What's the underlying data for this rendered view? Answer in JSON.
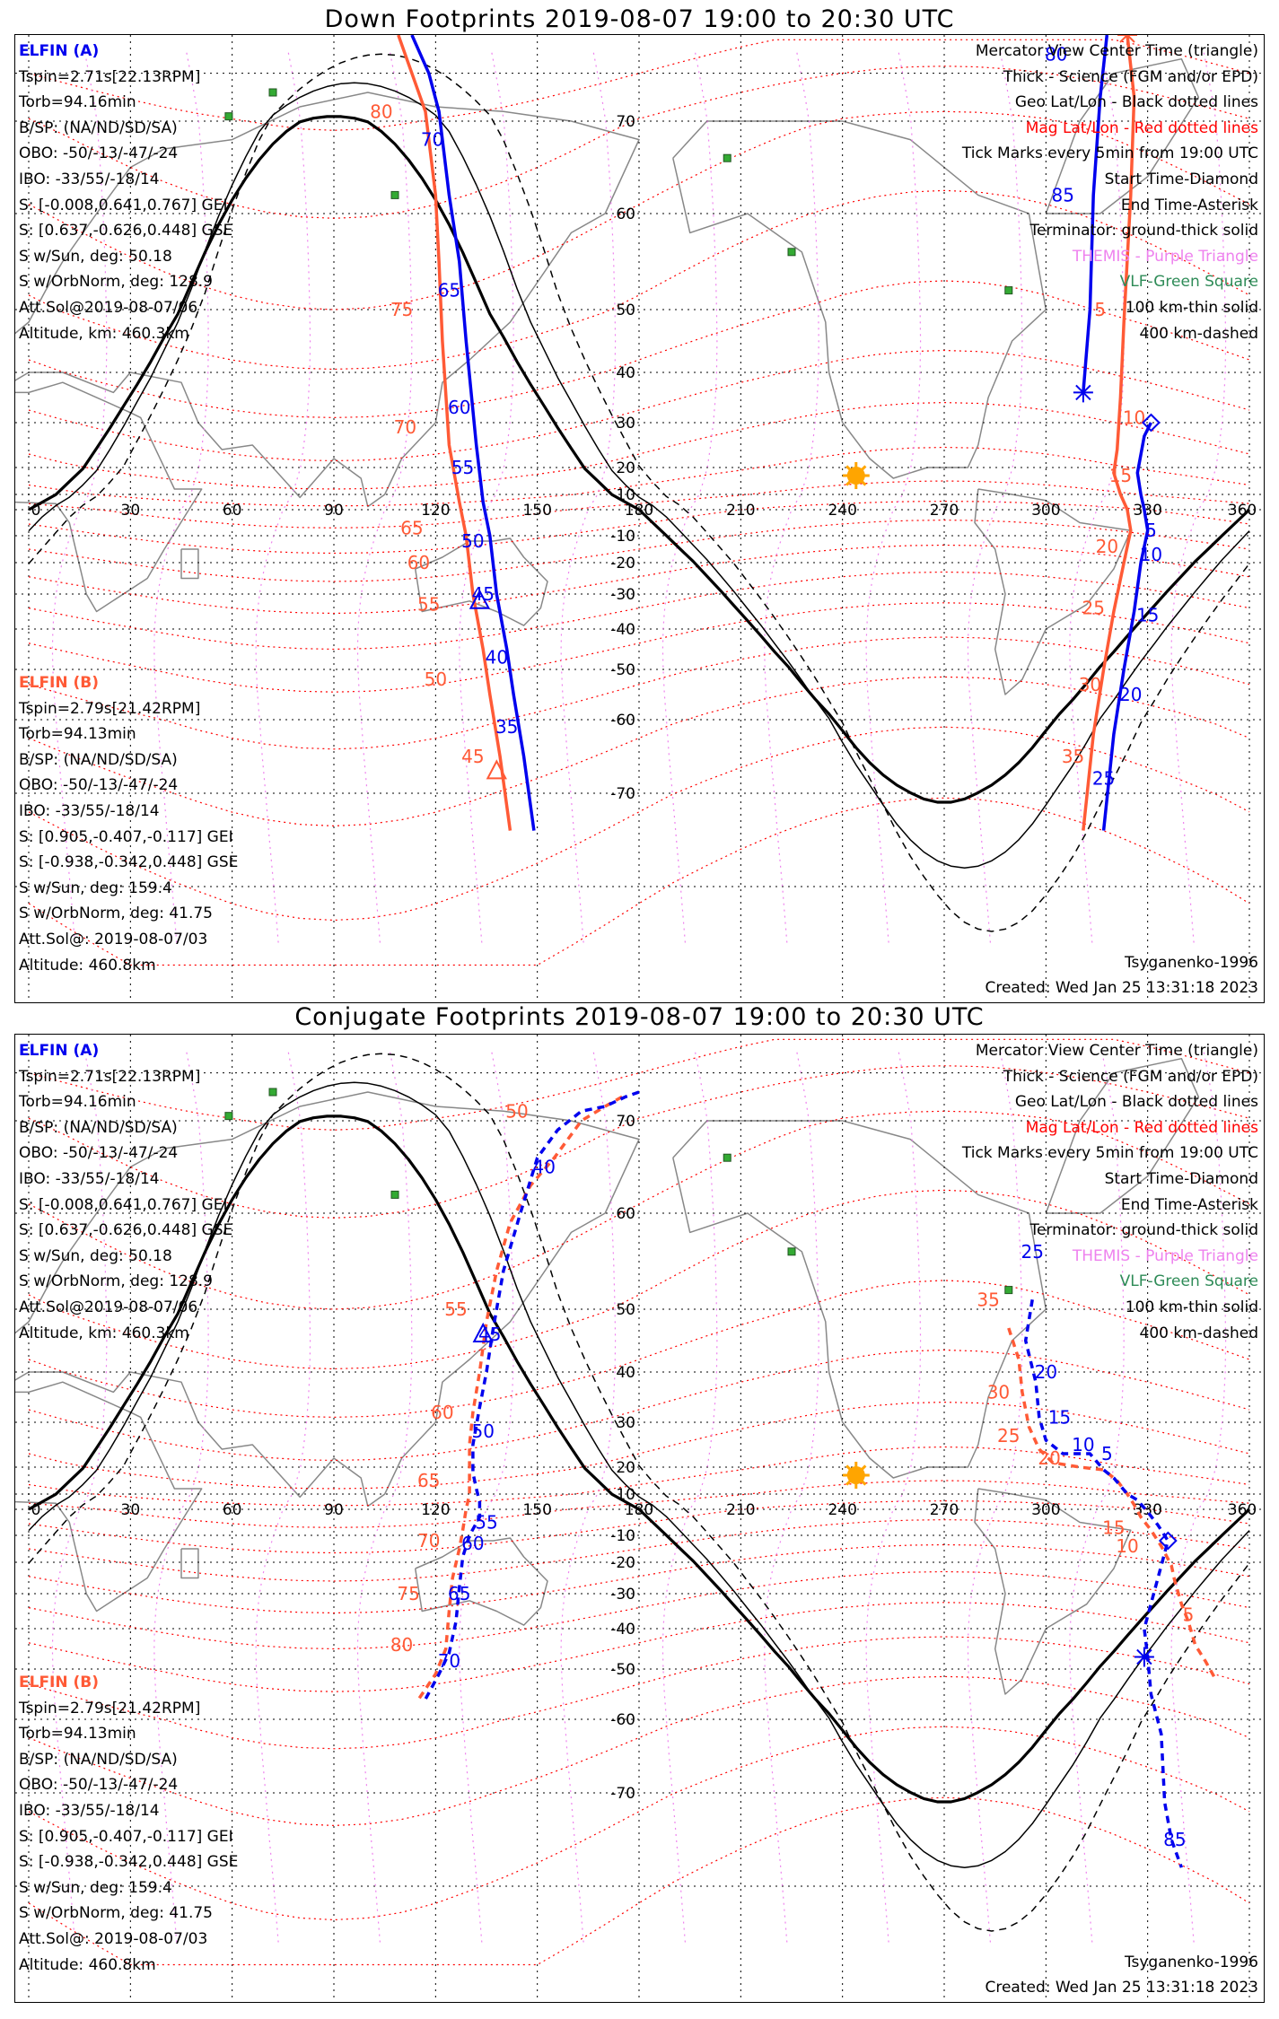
{
  "titles": {
    "down": "Down Footprints 2019-08-07 19:00 to 20:30 UTC",
    "conj": "Conjugate Footprints 2019-08-07 19:00 to 20:30 UTC"
  },
  "colors": {
    "elfin_a": "#0000ee",
    "elfin_b": "#ff5a36",
    "mag_grid": "#ff0000",
    "geo_grid": "#000000",
    "themis": "#ee82ee",
    "vlf": "#2e8b57",
    "sun": "#ffa500"
  },
  "info_a": {
    "head": "ELFIN (A)",
    "lines": [
      "Tspin=2.71s[22.13RPM]",
      "Torb=94.16min",
      "B/SP: (NA/ND/SD/SA)",
      "OBO: -50/-13/-47/-24",
      "IBO: -33/55/-18/14",
      "S: [-0.008,0.641,0.767] GEI",
      "S: [0.637,-0.626,0.448] GSE",
      "S w/Sun, deg: 50.18",
      "S w/OrbNorm, deg: 128.9",
      "Att.Sol@2019-08-07/06",
      "Altitude, km: 460.3km"
    ]
  },
  "info_b": {
    "head": "ELFIN (B)",
    "lines": [
      "Tspin=2.79s[21.42RPM]",
      "Torb=94.13min",
      "B/SP: (NA/ND/SD/SA)",
      "OBO: -50/-13/-47/-24",
      "IBO: -33/55/-18/14",
      "S: [0.905,-0.407,-0.117] GEI",
      "S: [-0.938,-0.342,0.448] GSE",
      "S w/Sun, deg: 159.4",
      "S w/OrbNorm, deg: 41.75",
      "Att.Sol@: 2019-08-07/03",
      "Altitude: 460.8km"
    ]
  },
  "legend": [
    {
      "text": "Mercator View Center Time (triangle)",
      "color": "#000000"
    },
    {
      "text": "Thick - Science (FGM and/or EPD)",
      "color": "#000000"
    },
    {
      "text": "Geo Lat/Lon - Black dotted lines",
      "color": "#000000"
    },
    {
      "text": "Mag Lat/Lon - Red dotted lines",
      "color": "#ff0000"
    },
    {
      "text": "Tick Marks every 5min from 19:00 UTC",
      "color": "#000000"
    },
    {
      "text": "Start Time-Diamond",
      "color": "#000000"
    },
    {
      "text": "End Time-Asterisk",
      "color": "#000000"
    },
    {
      "text": "Terminator: ground-thick solid",
      "color": "#000000"
    },
    {
      "text": "THEMIS - Purple Triangle",
      "color": "#ee82ee"
    },
    {
      "text": "VLF-Green Square",
      "color": "#2e8b57"
    },
    {
      "text": "100 km-thin solid",
      "color": "#000000"
    },
    {
      "text": "400 km-dashed",
      "color": "#000000"
    }
  ],
  "model": "Tsyganenko-1996",
  "created": "Created: Wed Jan 25 13:31:18 2023",
  "axes": {
    "lon_ticks": [
      "0",
      "30",
      "60",
      "90",
      "120",
      "150",
      "180",
      "210",
      "240",
      "270",
      "300",
      "330",
      "360"
    ],
    "lat_ticks": [
      "70",
      "60",
      "50",
      "40",
      "30",
      "20",
      "10",
      "-10",
      "-20",
      "-30",
      "-40",
      "-50",
      "-60",
      "-70"
    ]
  },
  "down": {
    "track_a_west": [
      [
        113,
        88
      ],
      [
        118,
        80
      ],
      [
        121,
        72
      ],
      [
        124,
        62
      ],
      [
        127,
        55
      ],
      [
        129,
        45
      ],
      [
        132,
        25
      ],
      [
        134,
        5
      ],
      [
        136,
        -10
      ],
      [
        138,
        -30
      ],
      [
        141,
        -45
      ],
      [
        143,
        -55
      ],
      [
        146,
        -65
      ],
      [
        149,
        -74
      ]
    ],
    "track_b_west": [
      [
        109,
        88
      ],
      [
        113,
        80
      ],
      [
        117,
        72
      ],
      [
        120,
        62
      ],
      [
        121,
        55
      ],
      [
        122,
        45
      ],
      [
        124,
        25
      ],
      [
        127,
        5
      ],
      [
        129,
        -10
      ],
      [
        131,
        -30
      ],
      [
        134,
        -45
      ],
      [
        136,
        -55
      ],
      [
        139,
        -65
      ],
      [
        142,
        -74
      ]
    ],
    "track_a_east": [
      [
        311,
        36
      ],
      [
        313,
        50
      ],
      [
        314,
        62
      ],
      [
        316,
        75
      ],
      [
        318,
        88
      ]
    ],
    "track_a_east2": [
      [
        331,
        30
      ],
      [
        329,
        27
      ],
      [
        327,
        18
      ],
      [
        328,
        10
      ],
      [
        329,
        0
      ],
      [
        330,
        -8
      ],
      [
        328,
        -20
      ],
      [
        326,
        -35
      ],
      [
        323,
        -50
      ],
      [
        320,
        -62
      ],
      [
        317,
        -74
      ]
    ],
    "track_b_east": [
      [
        324,
        88
      ],
      [
        326,
        75
      ],
      [
        325,
        62
      ],
      [
        323,
        48
      ],
      [
        322,
        35
      ],
      [
        321,
        24
      ],
      [
        320,
        18
      ],
      [
        322,
        10
      ],
      [
        324,
        0
      ],
      [
        325,
        -8
      ],
      [
        323,
        -20
      ],
      [
        320,
        -35
      ],
      [
        317,
        -50
      ],
      [
        314,
        -62
      ],
      [
        311,
        -74
      ]
    ],
    "labels_a": [
      {
        "t": "70",
        "lon": 119,
        "lat": 68
      },
      {
        "t": "65",
        "lon": 124,
        "lat": 52
      },
      {
        "t": "60",
        "lon": 127,
        "lat": 33
      },
      {
        "t": "55",
        "lon": 128,
        "lat": 20
      },
      {
        "t": "50",
        "lon": 131,
        "lat": -12
      },
      {
        "t": "45",
        "lon": 134,
        "lat": -30
      },
      {
        "t": "40",
        "lon": 138,
        "lat": -47
      },
      {
        "t": "35",
        "lon": 141,
        "lat": -61
      },
      {
        "t": "80",
        "lon": 303,
        "lat": 84
      },
      {
        "t": "85",
        "lon": 305,
        "lat": 62
      },
      {
        "t": "5",
        "lon": 331,
        "lat": -8
      },
      {
        "t": "10",
        "lon": 331,
        "lat": -17
      },
      {
        "t": "15",
        "lon": 330,
        "lat": -36
      },
      {
        "t": "20",
        "lon": 325,
        "lat": -55
      },
      {
        "t": "25",
        "lon": 317,
        "lat": -68
      }
    ],
    "labels_b": [
      {
        "t": "80",
        "lon": 104,
        "lat": 72
      },
      {
        "t": "75",
        "lon": 110,
        "lat": 50
      },
      {
        "t": "70",
        "lon": 111,
        "lat": 29
      },
      {
        "t": "65",
        "lon": 113,
        "lat": -7
      },
      {
        "t": "60",
        "lon": 115,
        "lat": -20
      },
      {
        "t": "55",
        "lon": 118,
        "lat": -33
      },
      {
        "t": "50",
        "lon": 120,
        "lat": -52
      },
      {
        "t": "45",
        "lon": 131,
        "lat": -65
      },
      {
        "t": "5",
        "lon": 316,
        "lat": 50
      },
      {
        "t": "10",
        "lon": 326,
        "lat": 31
      },
      {
        "t": "15",
        "lon": 322,
        "lat": 17
      },
      {
        "t": "20",
        "lon": 318,
        "lat": -14
      },
      {
        "t": "25",
        "lon": 314,
        "lat": -34
      },
      {
        "t": "30",
        "lon": 313,
        "lat": -53
      },
      {
        "t": "35",
        "lon": 308,
        "lat": -65
      }
    ],
    "triangle_a": [
      133,
      -32
    ],
    "triangle_b": [
      138,
      -67
    ],
    "diamond_a": [
      331,
      30
    ],
    "asterisk_a": [
      311,
      36
    ],
    "asterisk_b": [
      324,
      88
    ]
  },
  "conj": {
    "track_a_west": [
      [
        180,
        76
      ],
      [
        176,
        75
      ],
      [
        170,
        73
      ],
      [
        163,
        72
      ],
      [
        156,
        69
      ],
      [
        150,
        66
      ],
      [
        145,
        60
      ],
      [
        140,
        54
      ],
      [
        137,
        47
      ],
      [
        135,
        40
      ],
      [
        133,
        33
      ],
      [
        131,
        25
      ],
      [
        131,
        18
      ],
      [
        132,
        12
      ],
      [
        133,
        5
      ],
      [
        133,
        -3
      ],
      [
        130,
        -10
      ],
      [
        128,
        -18
      ],
      [
        127,
        -28
      ],
      [
        126,
        -38
      ],
      [
        124,
        -46
      ],
      [
        121,
        -51
      ],
      [
        117,
        -56
      ]
    ],
    "track_b_west": [
      [
        175,
        75
      ],
      [
        170,
        73
      ],
      [
        163,
        70
      ],
      [
        155,
        66
      ],
      [
        148,
        63
      ],
      [
        142,
        59
      ],
      [
        138,
        54
      ],
      [
        135,
        48
      ],
      [
        133,
        40
      ],
      [
        131,
        32
      ],
      [
        130,
        25
      ],
      [
        130,
        18
      ],
      [
        130,
        10
      ],
      [
        129,
        0
      ],
      [
        128,
        -8
      ],
      [
        127,
        -15
      ],
      [
        125,
        -25
      ],
      [
        124,
        -35
      ],
      [
        123,
        -45
      ],
      [
        120,
        -51
      ],
      [
        115,
        -56
      ]
    ],
    "track_a_east": [
      [
        296,
        51
      ],
      [
        294,
        45
      ],
      [
        297,
        38
      ],
      [
        298,
        31
      ],
      [
        300,
        26
      ],
      [
        305,
        23
      ],
      [
        313,
        23
      ],
      [
        317,
        19
      ],
      [
        320,
        16
      ],
      [
        324,
        10
      ],
      [
        327,
        6
      ],
      [
        330,
        -1
      ],
      [
        333,
        -6
      ],
      [
        336,
        -12
      ],
      [
        329,
        -40
      ],
      [
        330,
        -47
      ],
      [
        331,
        -55
      ],
      [
        334,
        -62
      ],
      [
        335,
        -71
      ],
      [
        337,
        -75
      ],
      [
        340,
        -78
      ]
    ],
    "track_b_east": [
      [
        289,
        47
      ],
      [
        292,
        42
      ],
      [
        293,
        36
      ],
      [
        295,
        29
      ],
      [
        298,
        24
      ],
      [
        302,
        21
      ],
      [
        310,
        20
      ],
      [
        317,
        19
      ],
      [
        321,
        15
      ],
      [
        324,
        10
      ],
      [
        326,
        3
      ],
      [
        328,
        -3
      ],
      [
        331,
        -8
      ],
      [
        334,
        -14
      ],
      [
        337,
        -21
      ],
      [
        338,
        -26
      ],
      [
        340,
        -33
      ],
      [
        342,
        -38
      ],
      [
        344,
        -44
      ],
      [
        347,
        -48
      ],
      [
        350,
        -52
      ]
    ],
    "labels_a": [
      {
        "t": "40",
        "lon": 152,
        "lat": 65
      },
      {
        "t": "45",
        "lon": 136,
        "lat": 46
      },
      {
        "t": "50",
        "lon": 134,
        "lat": 28
      },
      {
        "t": "55",
        "lon": 135,
        "lat": -5
      },
      {
        "t": "60",
        "lon": 131,
        "lat": -13
      },
      {
        "t": "65",
        "lon": 127,
        "lat": -30
      },
      {
        "t": "70",
        "lon": 124,
        "lat": -48
      },
      {
        "t": "25",
        "lon": 296,
        "lat": 56
      },
      {
        "t": "20",
        "lon": 300,
        "lat": 40
      },
      {
        "t": "15",
        "lon": 304,
        "lat": 31
      },
      {
        "t": "10",
        "lon": 311,
        "lat": 25
      },
      {
        "t": "5",
        "lon": 318,
        "lat": 23
      },
      {
        "t": "85",
        "lon": 338,
        "lat": -75
      }
    ],
    "labels_b": [
      {
        "t": "50",
        "lon": 144,
        "lat": 72
      },
      {
        "t": "55",
        "lon": 126,
        "lat": 50
      },
      {
        "t": "60",
        "lon": 122,
        "lat": 32
      },
      {
        "t": "65",
        "lon": 118,
        "lat": 15
      },
      {
        "t": "70",
        "lon": 118,
        "lat": -12
      },
      {
        "t": "75",
        "lon": 112,
        "lat": -30
      },
      {
        "t": "80",
        "lon": 110,
        "lat": -44
      },
      {
        "t": "35",
        "lon": 283,
        "lat": 51
      },
      {
        "t": "30",
        "lon": 286,
        "lat": 36
      },
      {
        "t": "25",
        "lon": 289,
        "lat": 27
      },
      {
        "t": "20",
        "lon": 301,
        "lat": 22
      },
      {
        "t": "15",
        "lon": 320,
        "lat": -7
      },
      {
        "t": "10",
        "lon": 324,
        "lat": -14
      },
      {
        "t": "5",
        "lon": 342,
        "lat": -36
      }
    ],
    "triangle_a": [
      134,
      46
    ],
    "diamond_a": [
      336,
      -12
    ],
    "asterisk_a": [
      329,
      -47
    ]
  }
}
